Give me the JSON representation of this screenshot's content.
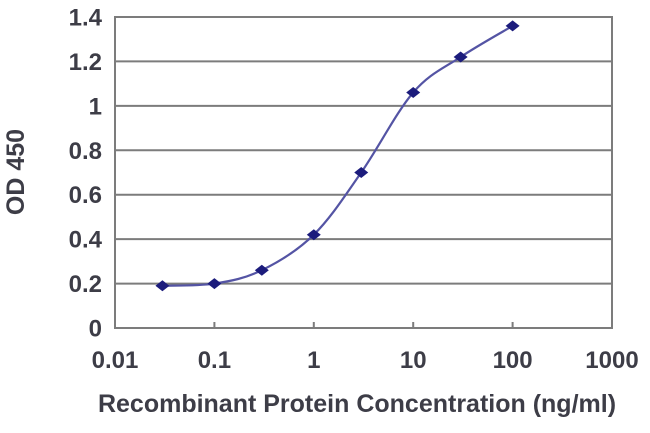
{
  "chart_data": {
    "type": "line",
    "title": "",
    "xlabel": "Recombinant Protein Concentration (ng/ml)",
    "ylabel": "OD 450",
    "x_scale": "log",
    "xlim": [
      0.01,
      1000
    ],
    "ylim": [
      0,
      1.4
    ],
    "x_tick_values": [
      0.01,
      0.1,
      1,
      10,
      100,
      1000
    ],
    "x_tick_labels": [
      "0.01",
      "0.1",
      "1",
      "10",
      "100",
      "1000"
    ],
    "y_tick_values": [
      0,
      0.2,
      0.4,
      0.6,
      0.8,
      1,
      1.2,
      1.4
    ],
    "y_tick_labels": [
      "0",
      "0.2",
      "0.4",
      "0.6",
      "0.8",
      "1",
      "1.2",
      "1.4"
    ],
    "grid": "horizontal",
    "legend": "none",
    "marker": "diamond",
    "series": [
      {
        "name": "OD 450",
        "x": [
          0.03,
          0.1,
          0.3,
          1,
          3,
          10,
          30,
          100
        ],
        "values": [
          0.19,
          0.2,
          0.26,
          0.42,
          0.7,
          1.06,
          1.22,
          1.36
        ]
      }
    ],
    "colors": {
      "line": "#5454a4",
      "marker": "#1c1c7c",
      "grid": "#7c7c7c",
      "frame": "#7c7c7c",
      "text": "#3d3d47",
      "background": "#ffffff"
    }
  }
}
